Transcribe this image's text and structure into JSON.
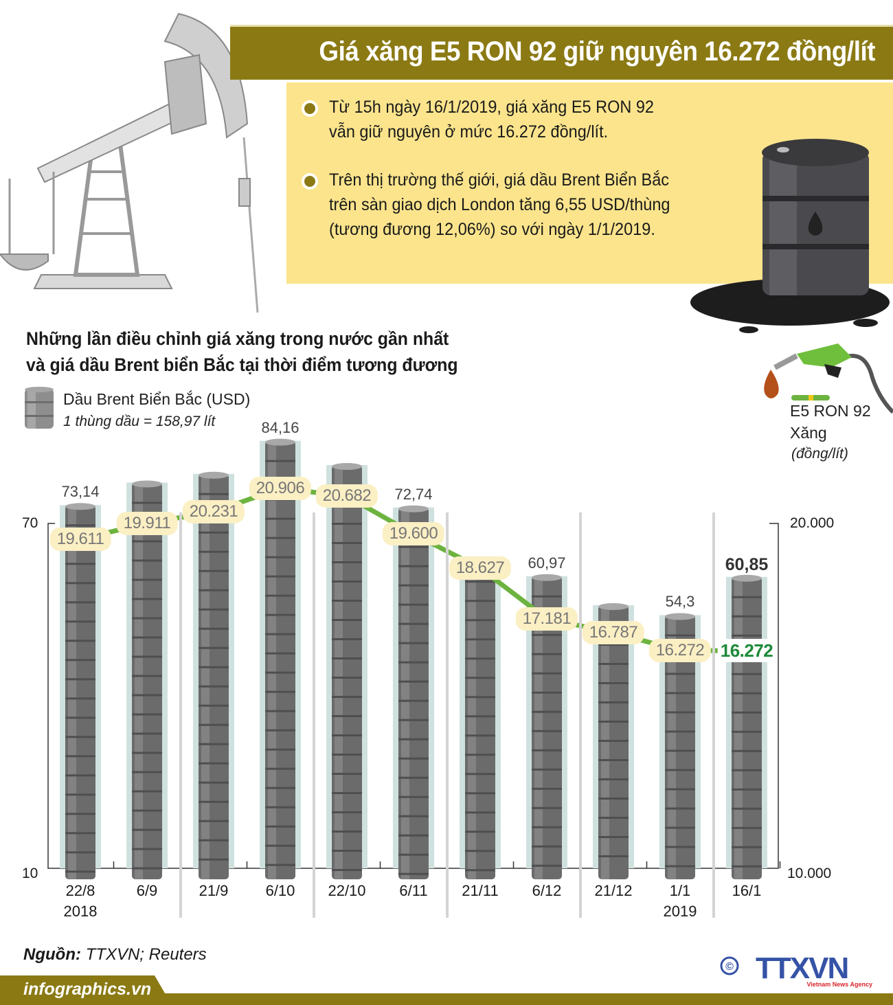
{
  "header": {
    "title": "Giá xăng E5 RON 92 giữ nguyên 16.272 đồng/lít"
  },
  "info": {
    "bullets": [
      {
        "lines": [
          "Từ 15h ngày 16/1/2019, giá xăng E5 RON 92",
          "vẫn giữ nguyên ở mức 16.272 đồng/lít."
        ]
      },
      {
        "lines": [
          "Trên thị trường thế giới, giá dầu Brent Biển Bắc",
          "trên sàn giao dịch London tăng 6,55 USD/thùng",
          "(tương đương 12,06%) so với ngày 1/1/2019."
        ]
      }
    ]
  },
  "icons": {
    "pump": "oil-pumpjack-illustration",
    "barrel": "oil-barrel-with-spill",
    "nozzle": "fuel-nozzle-with-drop"
  },
  "colors": {
    "brand_olive": "#8b7a14",
    "info_bg": "#fbe48c",
    "line_green": "#6db33f",
    "pill_bg": "#fbefc4",
    "final_green": "#1e8a3a",
    "column_bg": "#cfe1df",
    "barrel_gray": "#6b6b6b"
  },
  "chart_title": {
    "line1": "Những lần điều chỉnh giá xăng trong nước gần nhất",
    "line2": "và giá dầu Brent biển Bắc tại thời điểm tương đương"
  },
  "legend": {
    "brent_label": "Dầu Brent Biển Bắc (USD)",
    "brent_note": "1 thùng dầu = 158,97 lít",
    "fuel_label1": "E5 RON 92",
    "fuel_label2": "Xăng",
    "fuel_unit": "(đồng/lít)"
  },
  "axes": {
    "left_top": "70",
    "left_bottom": "10",
    "right_top": "20.000",
    "right_bottom": "10.000"
  },
  "chart_data": {
    "type": "bar+line",
    "title": "Những lần điều chỉnh giá xăng trong nước gần nhất và giá dầu Brent biển Bắc tại thời điểm tương đương",
    "categories": [
      "22/8",
      "6/9",
      "21/9",
      "6/10",
      "22/10",
      "6/11",
      "21/11",
      "6/12",
      "21/12",
      "1/1",
      "16/1"
    ],
    "category_years": [
      "2018",
      "",
      "",
      "",
      "",
      "",
      "",
      "",
      "",
      "2019",
      ""
    ],
    "series": [
      {
        "name": "Dầu Brent Biển Bắc (USD)",
        "type": "bar",
        "axis": "left",
        "values": [
          73.14,
          77.0,
          78.5,
          84.16,
          80.0,
          72.74,
          63.5,
          60.97,
          56.0,
          54.3,
          60.85
        ],
        "labels": [
          "73,14",
          "",
          "",
          "84,16",
          "",
          "72,74",
          "",
          "60,97",
          "",
          "54,3",
          "60,85"
        ]
      },
      {
        "name": "Xăng E5 RON 92 (đồng/lít)",
        "type": "line",
        "axis": "right",
        "values": [
          19611,
          19911,
          20231,
          20906,
          20682,
          19600,
          18627,
          17181,
          16787,
          16272,
          16272
        ],
        "labels": [
          "19.611",
          "19.911",
          "20.231",
          "20.906",
          "20.682",
          "19.600",
          "18.627",
          "17.181",
          "16.787",
          "16.272",
          "16.272"
        ]
      }
    ],
    "left_axis": {
      "label": "USD",
      "ticks": [
        "70",
        "10"
      ],
      "range": [
        10,
        70
      ]
    },
    "right_axis": {
      "label": "đồng/lít",
      "ticks": [
        "20.000",
        "10.000"
      ],
      "range": [
        10000,
        20000
      ]
    },
    "legend_position": "top"
  },
  "footer": {
    "source_label": "Nguồn:",
    "source_value": " TTXVN; Reuters",
    "site": "infographics.vn",
    "logo_text": "TTXVN",
    "logo_sub": "Vietnam News Agency",
    "copyright": "©"
  }
}
